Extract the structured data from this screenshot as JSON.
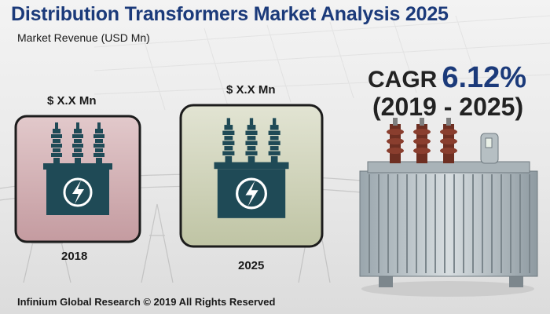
{
  "header": {
    "title": "Distribution Transformers Market Analysis 2025",
    "subtitle": "Market Revenue (USD Mn)"
  },
  "cagr": {
    "label": "CAGR",
    "value": "6.12%",
    "period": "(2019 - 2025)"
  },
  "cards": [
    {
      "value_label": "$ X.X Mn",
      "year": "2018",
      "bg_color": "#c9a1a6"
    },
    {
      "value_label": "$ X.X Mn",
      "year": "2025",
      "bg_color": "#c7ccae"
    }
  ],
  "icons": {
    "card_icon": "transformer-icon",
    "product_image": "distribution-transformer-photo"
  },
  "colors": {
    "title": "#1b3a7a",
    "icon_fill": "#1f4a56"
  },
  "footer": {
    "copyright": "Infinium Global Research © 2019 All Rights Reserved"
  }
}
